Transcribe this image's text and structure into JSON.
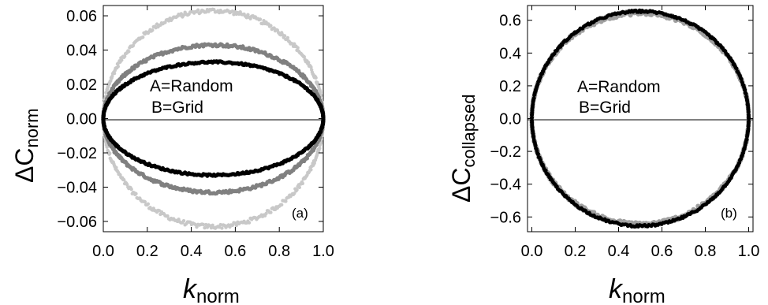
{
  "chart_data": [
    {
      "type": "scatter",
      "panel_label": "(a)",
      "xlabel": "k",
      "xlabel_sub": "norm",
      "ylabel": "ΔC",
      "ylabel_sub": "norm",
      "xlim": [
        0.0,
        1.0
      ],
      "ylim": [
        -0.066,
        0.066
      ],
      "xticks": [
        0.0,
        0.2,
        0.4,
        0.6,
        0.8,
        1.0
      ],
      "xtick_labels": [
        "0.0",
        "0.2",
        "0.4",
        "0.6",
        "0.8",
        "1.0"
      ],
      "yticks": [
        0.06,
        0.04,
        0.02,
        0.0,
        -0.02,
        -0.04,
        -0.06
      ],
      "ytick_labels": [
        "0.06",
        "0.04",
        "0.02",
        "0.00",
        "−0.02",
        "−0.04",
        "−0.06"
      ],
      "annotations": [
        "A=Random",
        "B=Grid"
      ],
      "zero_line": true,
      "series": [
        {
          "shape": "ellipse",
          "center_x": 0.5,
          "semi_major": 0.5,
          "peak_y": 0.063,
          "color": "#c8c8c8",
          "point_size": 2.2,
          "scatter": 0.0012
        },
        {
          "shape": "ellipse",
          "center_x": 0.5,
          "semi_major": 0.5,
          "peak_y": 0.043,
          "color": "#808080",
          "point_size": 2.6,
          "scatter": 0.0008
        },
        {
          "shape": "ellipse",
          "center_x": 0.5,
          "semi_major": 0.5,
          "peak_y": 0.033,
          "color": "#000000",
          "point_size": 2.6,
          "scatter": 0.0005
        }
      ]
    },
    {
      "type": "scatter",
      "panel_label": "(b)",
      "xlabel": "k",
      "xlabel_sub": "norm",
      "ylabel": "ΔC",
      "ylabel_sub": "collapsed",
      "xlim": [
        -0.02,
        1.02
      ],
      "ylim": [
        -0.69,
        0.69
      ],
      "xticks": [
        0.0,
        0.2,
        0.4,
        0.6,
        0.8,
        1.0
      ],
      "xtick_labels": [
        "0.0",
        "0.2",
        "0.4",
        "0.6",
        "0.8",
        "1.0"
      ],
      "yticks": [
        0.6,
        0.4,
        0.2,
        0.0,
        -0.2,
        -0.4,
        -0.6
      ],
      "ytick_labels": [
        "0.6",
        "0.4",
        "0.2",
        "0.0",
        "−0.2",
        "−0.4",
        "−0.6"
      ],
      "annotations": [
        "A=Random",
        "B=Grid"
      ],
      "zero_line": true,
      "series": [
        {
          "shape": "ellipse",
          "center_x": 0.5,
          "semi_major": 0.5,
          "peak_y": 0.645,
          "color": "#a0a0a0",
          "point_size": 3.0,
          "scatter": 0.012
        },
        {
          "shape": "ellipse",
          "center_x": 0.5,
          "semi_major": 0.5,
          "peak_y": 0.655,
          "color": "#000000",
          "point_size": 2.4,
          "scatter": 0.006
        }
      ]
    }
  ]
}
